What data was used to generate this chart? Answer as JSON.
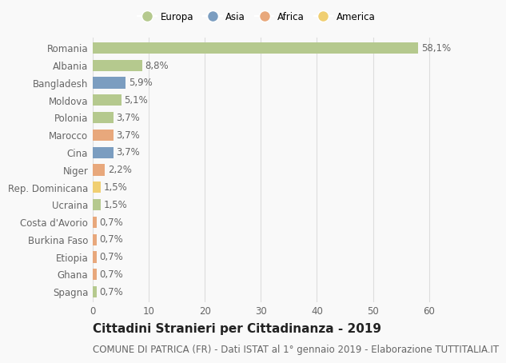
{
  "countries": [
    "Romania",
    "Albania",
    "Bangladesh",
    "Moldova",
    "Polonia",
    "Marocco",
    "Cina",
    "Niger",
    "Rep. Dominicana",
    "Ucraina",
    "Costa d'Avorio",
    "Burkina Faso",
    "Etiopia",
    "Ghana",
    "Spagna"
  ],
  "values": [
    58.1,
    8.8,
    5.9,
    5.1,
    3.7,
    3.7,
    3.7,
    2.2,
    1.5,
    1.5,
    0.7,
    0.7,
    0.7,
    0.7,
    0.7
  ],
  "labels": [
    "58,1%",
    "8,8%",
    "5,9%",
    "5,1%",
    "3,7%",
    "3,7%",
    "3,7%",
    "2,2%",
    "1,5%",
    "1,5%",
    "0,7%",
    "0,7%",
    "0,7%",
    "0,7%",
    "0,7%"
  ],
  "continents": [
    "Europa",
    "Europa",
    "Asia",
    "Europa",
    "Europa",
    "Africa",
    "Asia",
    "Africa",
    "America",
    "Europa",
    "Africa",
    "Africa",
    "Africa",
    "Africa",
    "Europa"
  ],
  "continent_colors": {
    "Europa": "#b5c98e",
    "Asia": "#7b9dc0",
    "Africa": "#e8a87c",
    "America": "#f0cf72"
  },
  "xlim": [
    0,
    65
  ],
  "xticks": [
    0,
    10,
    20,
    30,
    40,
    50,
    60
  ],
  "title": "Cittadini Stranieri per Cittadinanza - 2019",
  "subtitle": "COMUNE DI PATRICA (FR) - Dati ISTAT al 1° gennaio 2019 - Elaborazione TUTTITALIA.IT",
  "background_color": "#f9f9f9",
  "grid_color": "#dddddd",
  "bar_height": 0.65,
  "title_fontsize": 11,
  "subtitle_fontsize": 8.5,
  "label_fontsize": 8.5,
  "tick_fontsize": 8.5,
  "legend_order": [
    "Europa",
    "Asia",
    "Africa",
    "America"
  ]
}
